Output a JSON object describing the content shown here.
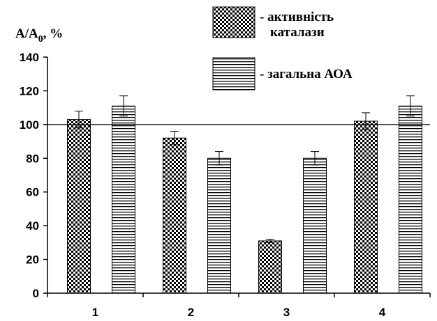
{
  "chart_data": {
    "type": "bar",
    "ylabel_main": "A/A",
    "ylabel_sub": "0",
    "ylabel_suffix": ", %",
    "categories": [
      "1",
      "2",
      "3",
      "4"
    ],
    "ylim": [
      0,
      140
    ],
    "yticks": [
      0,
      20,
      40,
      60,
      80,
      100,
      120,
      140
    ],
    "reference_line": 100,
    "grid": false,
    "legend_position": "top-right",
    "series": [
      {
        "name": "- активність\nкаталази",
        "legend_line1": "- активність",
        "legend_line2": "каталази",
        "pattern": "checkerboard",
        "values": [
          103,
          92,
          31,
          102
        ],
        "errors": [
          5,
          4,
          1,
          5
        ]
      },
      {
        "name": "- загальна АОА",
        "legend_line1": "- загальна АОА",
        "pattern": "horizontal-lines",
        "values": [
          111,
          80,
          80,
          111
        ],
        "errors": [
          6,
          4,
          4,
          6
        ]
      }
    ]
  }
}
